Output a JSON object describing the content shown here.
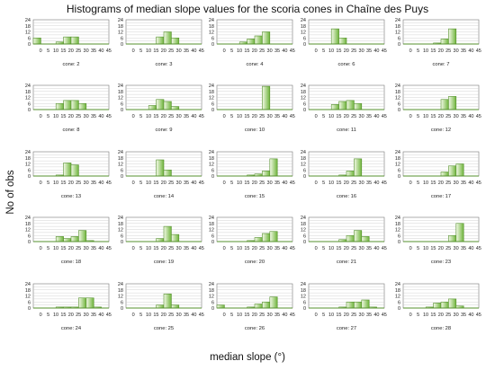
{
  "chart_data": {
    "type": "bar",
    "title": "Histograms of median slope values for the scoria cones in Chaîne des Puys",
    "xlabel": "median slope (°)",
    "ylabel": "No of obs",
    "x_ticks": [
      "0",
      "5",
      "10",
      "15",
      "20",
      "25",
      "30",
      "35",
      "40",
      "45"
    ],
    "y_ticks": [
      "0",
      "6",
      "12",
      "18",
      "24"
    ],
    "ylim": [
      0,
      24
    ],
    "bin_width": 5,
    "bar_colors": {
      "light": "#f4fae8",
      "dark": "#6fb43c",
      "edge": "#55902e"
    },
    "grid": true,
    "panels": [
      {
        "label": "cone: 2",
        "values": [
          6,
          0,
          0,
          2,
          7,
          7,
          0,
          0,
          0,
          0
        ]
      },
      {
        "label": "cone: 3",
        "values": [
          0,
          0,
          0,
          0,
          7,
          12,
          6,
          0,
          0,
          0
        ]
      },
      {
        "label": "cone: 4",
        "values": [
          0,
          0,
          0,
          2,
          5,
          8,
          12,
          0,
          0,
          0
        ]
      },
      {
        "label": "cone: 6",
        "values": [
          0,
          0,
          0,
          15,
          6,
          0,
          0,
          0,
          0,
          0
        ]
      },
      {
        "label": "cone: 7",
        "values": [
          0,
          0,
          0,
          0,
          1,
          5,
          15,
          0,
          0,
          0
        ]
      },
      {
        "label": "cone: 8",
        "values": [
          0,
          0,
          0,
          6,
          9,
          9,
          6,
          0,
          0,
          0
        ]
      },
      {
        "label": "cone: 9",
        "values": [
          0,
          0,
          0,
          4,
          10,
          8,
          3,
          0,
          0,
          0
        ]
      },
      {
        "label": "cone: 10",
        "values": [
          0,
          0,
          0,
          0,
          0,
          0,
          23,
          0,
          0,
          0
        ]
      },
      {
        "label": "cone: 11",
        "values": [
          0,
          0,
          0,
          5,
          8,
          9,
          6,
          0,
          0,
          0
        ]
      },
      {
        "label": "cone: 12",
        "values": [
          0,
          0,
          0,
          0,
          0,
          10,
          13,
          0,
          0,
          0
        ]
      },
      {
        "label": "cone: 13",
        "values": [
          0,
          0,
          0,
          1,
          13,
          11,
          0,
          0,
          0,
          0
        ]
      },
      {
        "label": "cone: 14",
        "values": [
          0,
          0,
          0,
          0,
          16,
          6,
          0,
          0,
          0,
          0
        ]
      },
      {
        "label": "cone: 15",
        "values": [
          0,
          0,
          0,
          0,
          1,
          2,
          5,
          17,
          0,
          0
        ]
      },
      {
        "label": "cone: 16",
        "values": [
          0,
          0,
          0,
          0,
          1,
          5,
          17,
          0,
          0,
          0
        ]
      },
      {
        "label": "cone: 17",
        "values": [
          0,
          0,
          0,
          0,
          0,
          4,
          10,
          12,
          0,
          0
        ]
      },
      {
        "label": "cone: 18",
        "values": [
          0,
          0,
          0,
          5,
          3,
          5,
          11,
          1,
          0,
          0
        ]
      },
      {
        "label": "cone: 19",
        "values": [
          0,
          0,
          0,
          0,
          3,
          15,
          7,
          0,
          0,
          0
        ]
      },
      {
        "label": "cone: 20",
        "values": [
          0,
          0,
          0,
          0,
          1,
          4,
          8,
          10,
          0,
          0
        ]
      },
      {
        "label": "cone: 21",
        "values": [
          0,
          0,
          0,
          0,
          2,
          6,
          11,
          5,
          0,
          0
        ]
      },
      {
        "label": "cone: 23",
        "values": [
          0,
          0,
          0,
          0,
          0,
          0,
          6,
          18,
          0,
          0
        ]
      },
      {
        "label": "cone: 24",
        "values": [
          0,
          0,
          0,
          1,
          1,
          1,
          10,
          10,
          1,
          0
        ]
      },
      {
        "label": "cone: 25",
        "values": [
          0,
          0,
          0,
          0,
          3,
          14,
          3,
          0,
          0,
          0
        ]
      },
      {
        "label": "cone: 26",
        "values": [
          3,
          0,
          0,
          0,
          1,
          4,
          6,
          11,
          0,
          0
        ]
      },
      {
        "label": "cone: 27",
        "values": [
          0,
          0,
          0,
          0,
          1,
          6,
          6,
          8,
          1,
          0
        ]
      },
      {
        "label": "cone: 28",
        "values": [
          0,
          0,
          0,
          1,
          5,
          6,
          9,
          2,
          0,
          0
        ]
      }
    ]
  }
}
